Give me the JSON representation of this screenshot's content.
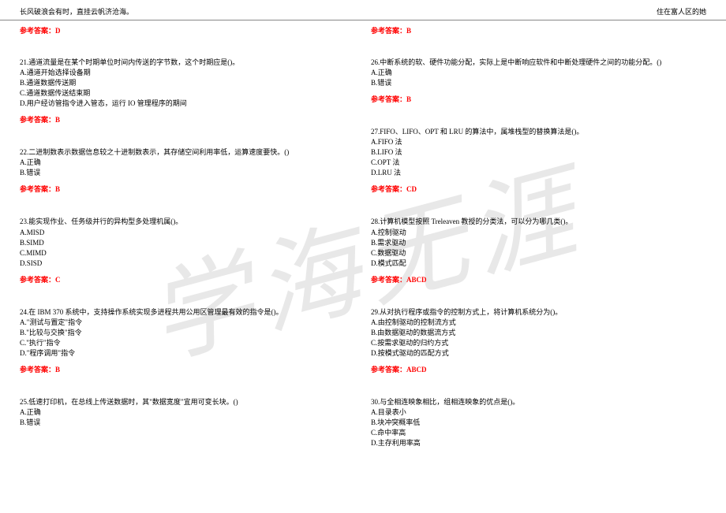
{
  "header": {
    "left": "长风破浪会有时，直挂云帆济沧海。",
    "right": "住在富人区的她"
  },
  "watermark": "学海无涯",
  "left_top_answer": "参考答案：D",
  "right_top_answer": "参考答案：B",
  "left_questions": [
    {
      "text": "21.通道流量是在某个时期单位时间内传送的字节数，这个时期应是()。",
      "options": [
        "A.通道开始选择设备期",
        "B.通道数据传送期",
        "C.通道数据传送结束期",
        "D.用户经访管指令进入管态，运行 IO 管理程序的期间"
      ],
      "answer": "参考答案：B"
    },
    {
      "text": "22.二进制数表示数据信息较之十进制数表示，其存储空间利用率低，运算速度要快。()",
      "options": [
        "A.正确",
        "B.错误"
      ],
      "answer": "参考答案：B"
    },
    {
      "text": "23.能实现作业、任务级并行的异构型多处理机属()。",
      "options": [
        "A.MISD",
        "B.SIMD",
        "C.MIMD",
        "D.SISD"
      ],
      "answer": "参考答案：C"
    },
    {
      "text": "24.在 IBM 370 系统中，支持操作系统实现多进程共用公用区管理最有效的指令是()。",
      "options": [
        "A.\"测试与置定\"指令",
        "B.\"比较与交换\"指令",
        "C.\"执行\"指令",
        "D.\"程序调用\"指令"
      ],
      "answer": "参考答案：B"
    },
    {
      "text": "25.低速打印机，在总线上传送数据时，其\"数据宽度\"宜用可变长块。()",
      "options": [
        "A.正确",
        "B.错误"
      ],
      "answer": null
    }
  ],
  "right_questions": [
    {
      "text": "26.中断系统的软、硬件功能分配，实际上是中断响应软件和中断处理硬件之间的功能分配。()",
      "options": [
        "A.正确",
        "B.错误"
      ],
      "answer": "参考答案：B"
    },
    {
      "text": "27.FIFO、LIFO、OPT 和 LRU 的算法中，属堆栈型的替换算法是()。",
      "options": [
        "A.FIFO 法",
        "B.LIFO 法",
        "C.OPT 法",
        "D.LRU 法"
      ],
      "answer": "参考答案：CD"
    },
    {
      "text": "28.计算机模型按照 Treleaven 教授的分类法，可以分为哪几类()。",
      "options": [
        "A.控制驱动",
        "B.需求驱动",
        "C.数据驱动",
        "D.模式匹配"
      ],
      "answer": "参考答案：ABCD"
    },
    {
      "text": "29.从对执行程序或指令的控制方式上，将计算机系统分为()。",
      "options": [
        "A.由控制驱动的控制流方式",
        "B.由数据驱动的数据流方式",
        "C.按需求驱动的归约方式",
        "D.按模式驱动的匹配方式"
      ],
      "answer": "参考答案：ABCD"
    },
    {
      "text": "30.与全相连映象相比，组相连映象的优点是()。",
      "options": [
        "A.目录表小",
        "B.块冲突概率低",
        "C.命中率高",
        "D.主存利用率高"
      ],
      "answer": null
    }
  ]
}
